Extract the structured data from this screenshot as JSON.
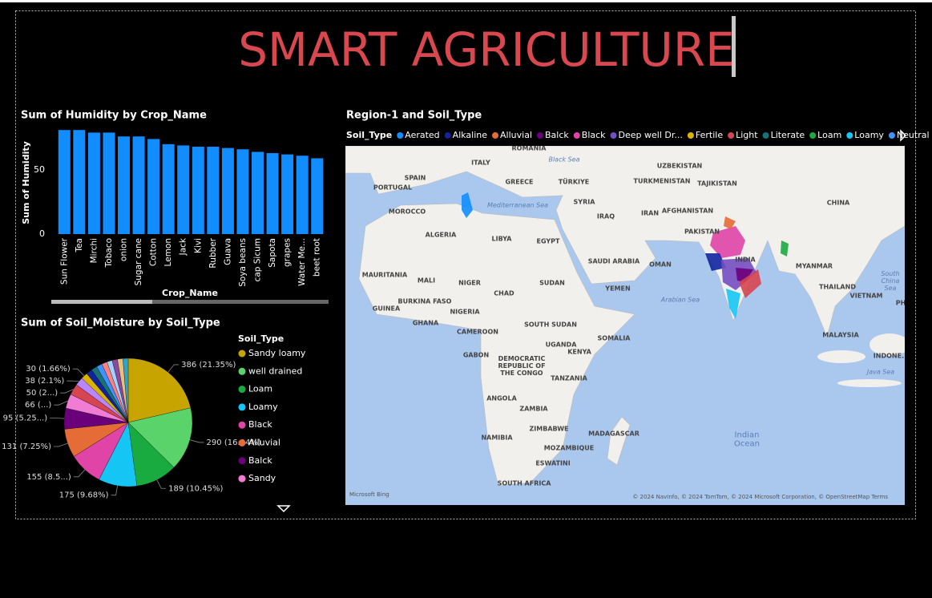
{
  "title": "SMART AGRICULTURE",
  "chart_data": [
    {
      "type": "bar",
      "title": "Sum of Humidity by Crop_Name",
      "x_label": "Crop_Name",
      "y_label": "Sum of Humidity",
      "categories": [
        "Sun Flower",
        "Tea",
        "Mirchi",
        "Tobaco",
        "onion",
        "Sugar cane",
        "Cotton",
        "Lemon",
        "Jack",
        "Kivi",
        "Rubber",
        "Guava",
        "Soya beans",
        "cap Sicum",
        "Sapota",
        "grapes",
        "Water Me...",
        "beet root"
      ],
      "values": [
        81,
        81,
        79,
        79,
        76,
        76,
        74,
        70,
        69,
        68,
        68,
        67,
        66,
        64,
        63,
        62,
        61,
        59
      ],
      "color": "#118dff",
      "ylim": [
        0,
        83
      ],
      "yticks": [
        0,
        50
      ],
      "grid": false
    },
    {
      "type": "pie",
      "title": "Sum of Soil_Moisture by Soil_Type",
      "legend_title": "Soil_Type",
      "categories": [
        "Sandy loamy",
        "well drained",
        "Loam",
        "Loamy",
        "Black",
        "Alluvial",
        "Balck",
        "Sandy",
        null,
        null,
        null,
        null,
        null,
        null,
        null,
        null,
        null,
        null,
        null
      ],
      "values": [
        386,
        290,
        189,
        175,
        155,
        131,
        95,
        66,
        50,
        38,
        30,
        28,
        27,
        26,
        25,
        24,
        24,
        25,
        24
      ],
      "value_labels": [
        "386 (21.35%)",
        "290 (16.04%)",
        "189 (10.45%)",
        "175 (9.68%)",
        "155 (8.5...)",
        "131 (7.25%)",
        "95 (5.25...)",
        "66 (...)",
        "50 (2...)",
        "38 (2.1%)",
        "30 (1.66%)",
        null,
        null,
        null,
        null,
        null,
        null,
        null,
        null
      ],
      "colors": [
        "#c8a400",
        "#5ad46a",
        "#1aab40",
        "#15c6f4",
        "#e044a7",
        "#e66c37",
        "#6b007b",
        "#f07cd4",
        "#d64550",
        "#b887ff",
        "#d9b300",
        "#12239e",
        "#197278",
        "#4092ff",
        "#ff8080",
        "#a0d1ff",
        "#8c4a9e",
        "#e8c07a",
        "#2fa4c7"
      ]
    }
  ],
  "map": {
    "title": "Region-1 and Soil_Type",
    "legend_title": "Soil_Type",
    "legend": [
      {
        "name": "Aerated",
        "color": "#118dff"
      },
      {
        "name": "Alkaline",
        "color": "#12239e"
      },
      {
        "name": "Alluvial",
        "color": "#e66c37"
      },
      {
        "name": "Balck",
        "color": "#6b007b"
      },
      {
        "name": "Black",
        "color": "#e044a7"
      },
      {
        "name": "Deep well Dr...",
        "color": "#744ec2"
      },
      {
        "name": "Fertile",
        "color": "#d9b300"
      },
      {
        "name": "Light",
        "color": "#d64550"
      },
      {
        "name": "Literate",
        "color": "#197278"
      },
      {
        "name": "Loam",
        "color": "#1aab40"
      },
      {
        "name": "Loamy",
        "color": "#15c6f4"
      },
      {
        "name": "Neutral",
        "color": "#4092ff"
      }
    ],
    "labels": [
      "ROMANIA",
      "ITALY",
      "Black Sea",
      "UZBEKISTAN",
      "SPAIN",
      "PORTUGAL",
      "GREECE",
      "TÜRKIYE",
      "TURKMENISTAN",
      "TAJIKISTAN",
      "CHINA",
      "SYRIA",
      "IRAQ",
      "IRAN",
      "AFGHANISTAN",
      "MOROCCO",
      "Mediterranean Sea",
      "ALGERIA",
      "LIBYA",
      "EGYPT",
      "PAKISTAN",
      "INDIA",
      "SAUDI ARABIA",
      "OMAN",
      "MYANMAR",
      "MAURITANIA",
      "MALI",
      "NIGER",
      "SUDAN",
      "YEMEN",
      "THAILAND",
      "VIETNAM",
      "South China Sea",
      "CHAD",
      "BURKINA FASO",
      "GUINEA",
      "NIGERIA",
      "Arabian Sea",
      "GHANA",
      "CAMEROON",
      "SOUTH SUDAN",
      "SOMALIA",
      "MALAYSIA",
      "UGANDA",
      "GABON",
      "KENYA",
      "DEMOCRATIC REPUBLIC OF THE CONGO",
      "INDONE...",
      "TANZANIA",
      "Java Sea",
      "ANGOLA",
      "ZAMBIA",
      "ZIMBABWE",
      "MADAGASCAR",
      "NAMIBIA",
      "MOZAMBIQUE",
      "Indian Ocean",
      "ESWATINI",
      "SOUTH AFRICA",
      "PH"
    ],
    "attribution": "Microsoft Bing",
    "copyright": "© 2024 NavInfo, © 2024 TomTom, © 2024 Microsoft Corporation, © OpenStreetMap  Terms"
  }
}
